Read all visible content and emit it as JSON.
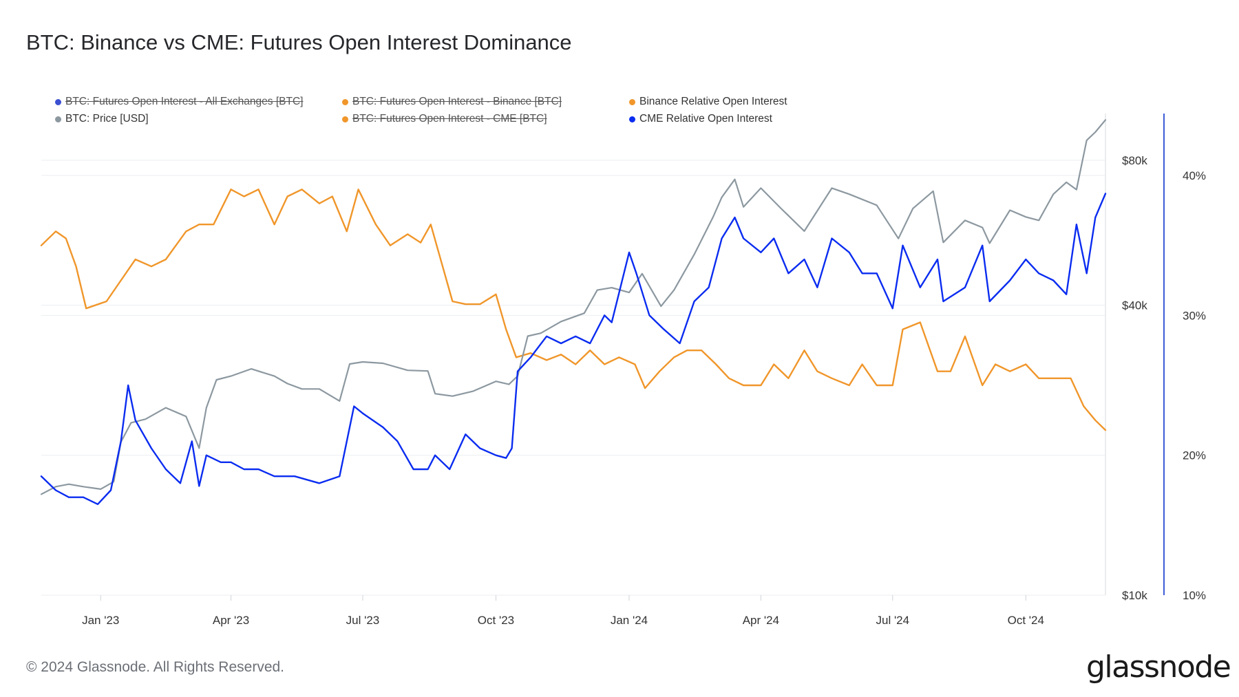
{
  "title": "BTC: Binance vs CME: Futures Open Interest Dominance",
  "footer": "© 2024 Glassnode. All Rights Reserved.",
  "logo": "glassnode",
  "legend": [
    {
      "label": "BTC: Futures Open Interest - All Exchanges [BTC]",
      "color": "#3b4fd1",
      "active": false
    },
    {
      "label": "BTC: Futures Open Interest - Binance [BTC]",
      "color": "#f0962a",
      "active": false
    },
    {
      "label": "Binance Relative Open Interest",
      "color": "#f0962a",
      "active": true
    },
    {
      "label": "BTC: Price [USD]",
      "color": "#8c98a0",
      "active": true
    },
    {
      "label": "BTC: Futures Open Interest - CME [BTC]",
      "color": "#f0962a",
      "active": false
    },
    {
      "label": "CME Relative Open Interest",
      "color": "#0a2cf0",
      "active": true
    }
  ],
  "chart_data": {
    "type": "line",
    "x_ticks": [
      "Jan '23",
      "Apr '23",
      "Jul '23",
      "Oct '23",
      "Jan '24",
      "Apr '24",
      "Jul '24",
      "Oct '24"
    ],
    "y_left_ticks": [
      "$80k",
      "$40k",
      "$10k"
    ],
    "y_right_ticks": [
      "40%",
      "30%",
      "20%",
      "10%"
    ],
    "y_left_scale": "log",
    "y_left_range": [
      10000,
      100000
    ],
    "y_right_range": [
      10,
      40
    ],
    "x_range": [
      "2022-11-21",
      "2024-11-25"
    ],
    "grid": true,
    "legend_position": "top",
    "series": [
      {
        "name": "Binance Relative Open Interest",
        "axis": "right",
        "color": "#f0962a",
        "x": [
          "2022-11-21",
          "2022-12-01",
          "2022-12-08",
          "2022-12-15",
          "2022-12-22",
          "2023-01-05",
          "2023-01-15",
          "2023-01-25",
          "2023-02-05",
          "2023-02-15",
          "2023-03-01",
          "2023-03-10",
          "2023-03-20",
          "2023-04-01",
          "2023-04-10",
          "2023-04-20",
          "2023-05-01",
          "2023-05-10",
          "2023-05-20",
          "2023-06-01",
          "2023-06-10",
          "2023-06-20",
          "2023-06-28",
          "2023-07-10",
          "2023-07-20",
          "2023-08-01",
          "2023-08-10",
          "2023-08-17",
          "2023-09-01",
          "2023-09-10",
          "2023-09-20",
          "2023-10-01",
          "2023-10-08",
          "2023-10-15",
          "2023-10-25",
          "2023-11-05",
          "2023-11-15",
          "2023-11-25",
          "2023-12-05",
          "2023-12-15",
          "2023-12-25",
          "2024-01-05",
          "2024-01-12",
          "2024-01-22",
          "2024-02-01",
          "2024-02-10",
          "2024-02-20",
          "2024-03-01",
          "2024-03-10",
          "2024-03-20",
          "2024-04-01",
          "2024-04-10",
          "2024-04-20",
          "2024-05-01",
          "2024-05-10",
          "2024-05-20",
          "2024-06-01",
          "2024-06-10",
          "2024-06-20",
          "2024-07-01",
          "2024-07-08",
          "2024-07-20",
          "2024-08-01",
          "2024-08-10",
          "2024-08-20",
          "2024-09-01",
          "2024-09-10",
          "2024-09-20",
          "2024-10-01",
          "2024-10-10",
          "2024-10-20",
          "2024-11-01",
          "2024-11-10",
          "2024-11-18",
          "2024-11-25"
        ],
        "values": [
          35,
          36,
          35.5,
          33.5,
          30.5,
          31,
          32.5,
          34,
          33.5,
          34,
          36,
          36.5,
          36.5,
          39,
          38.5,
          39,
          36.5,
          38.5,
          39,
          38,
          38.5,
          36,
          39,
          36.5,
          35,
          35.8,
          35.2,
          36.5,
          31,
          30.8,
          30.8,
          31.5,
          29,
          27,
          27.3,
          26.8,
          27.2,
          26.5,
          27.5,
          26.5,
          27,
          26.5,
          24.8,
          26,
          27,
          27.5,
          27.5,
          26.5,
          25.5,
          25,
          25,
          26.5,
          25.5,
          27.5,
          26,
          25.5,
          25,
          26.5,
          25,
          25,
          29,
          29.5,
          26,
          26,
          28.5,
          25,
          26.5,
          26,
          26.5,
          25.5,
          25.5,
          25.5,
          23.5,
          22.5,
          21.8
        ]
      },
      {
        "name": "BTC: Price [USD]",
        "axis": "left",
        "color": "#8c98a0",
        "x": [
          "2022-11-21",
          "2022-12-01",
          "2022-12-10",
          "2022-12-20",
          "2023-01-01",
          "2023-01-10",
          "2023-01-15",
          "2023-01-22",
          "2023-02-01",
          "2023-02-15",
          "2023-03-01",
          "2023-03-10",
          "2023-03-15",
          "2023-03-22",
          "2023-04-01",
          "2023-04-15",
          "2023-05-01",
          "2023-05-10",
          "2023-05-20",
          "2023-06-01",
          "2023-06-15",
          "2023-06-22",
          "2023-07-01",
          "2023-07-15",
          "2023-08-01",
          "2023-08-15",
          "2023-08-20",
          "2023-09-01",
          "2023-09-15",
          "2023-10-01",
          "2023-10-10",
          "2023-10-16",
          "2023-10-23",
          "2023-11-01",
          "2023-11-15",
          "2023-12-01",
          "2023-12-10",
          "2023-12-20",
          "2024-01-01",
          "2024-01-10",
          "2024-01-23",
          "2024-02-01",
          "2024-02-15",
          "2024-02-28",
          "2024-03-05",
          "2024-03-14",
          "2024-03-20",
          "2024-04-01",
          "2024-04-15",
          "2024-05-01",
          "2024-05-20",
          "2024-06-01",
          "2024-06-20",
          "2024-07-05",
          "2024-07-15",
          "2024-07-29",
          "2024-08-05",
          "2024-08-20",
          "2024-09-01",
          "2024-09-06",
          "2024-09-20",
          "2024-10-01",
          "2024-10-10",
          "2024-10-20",
          "2024-10-29",
          "2024-11-05",
          "2024-11-12",
          "2024-11-18",
          "2024-11-25"
        ],
        "values": [
          16200,
          16800,
          17000,
          16800,
          16600,
          17200,
          20800,
          22800,
          23200,
          24500,
          23500,
          20200,
          24500,
          28000,
          28500,
          29500,
          28500,
          27500,
          26800,
          26800,
          25300,
          30200,
          30500,
          30300,
          29300,
          29200,
          26200,
          25900,
          26500,
          27800,
          27400,
          28500,
          34500,
          35000,
          37000,
          38500,
          43000,
          43500,
          42500,
          46500,
          39800,
          43000,
          51000,
          61000,
          67000,
          73000,
          64000,
          70000,
          63500,
          57000,
          70000,
          68000,
          64500,
          55000,
          63500,
          69000,
          54000,
          60000,
          58000,
          53800,
          63000,
          61000,
          60000,
          68000,
          72000,
          69500,
          88000,
          91500,
          97000
        ]
      },
      {
        "name": "CME Relative Open Interest",
        "axis": "right",
        "color": "#0a2cf0",
        "x": [
          "2022-11-21",
          "2022-12-01",
          "2022-12-10",
          "2022-12-20",
          "2022-12-30",
          "2023-01-08",
          "2023-01-15",
          "2023-01-20",
          "2023-01-25",
          "2023-02-05",
          "2023-02-15",
          "2023-02-25",
          "2023-03-05",
          "2023-03-10",
          "2023-03-15",
          "2023-03-25",
          "2023-04-01",
          "2023-04-10",
          "2023-04-20",
          "2023-05-01",
          "2023-05-15",
          "2023-06-01",
          "2023-06-15",
          "2023-06-25",
          "2023-07-01",
          "2023-07-15",
          "2023-07-25",
          "2023-08-05",
          "2023-08-15",
          "2023-08-20",
          "2023-08-30",
          "2023-09-10",
          "2023-09-20",
          "2023-10-01",
          "2023-10-08",
          "2023-10-12",
          "2023-10-16",
          "2023-10-25",
          "2023-11-05",
          "2023-11-15",
          "2023-11-25",
          "2023-12-05",
          "2023-12-15",
          "2023-12-20",
          "2024-01-01",
          "2024-01-06",
          "2024-01-15",
          "2024-01-25",
          "2024-02-05",
          "2024-02-15",
          "2024-02-25",
          "2024-03-05",
          "2024-03-14",
          "2024-03-20",
          "2024-04-01",
          "2024-04-10",
          "2024-04-20",
          "2024-05-01",
          "2024-05-10",
          "2024-05-20",
          "2024-06-01",
          "2024-06-10",
          "2024-06-20",
          "2024-07-01",
          "2024-07-08",
          "2024-07-20",
          "2024-08-01",
          "2024-08-05",
          "2024-08-20",
          "2024-09-01",
          "2024-09-06",
          "2024-09-20",
          "2024-10-01",
          "2024-10-10",
          "2024-10-20",
          "2024-10-29",
          "2024-11-05",
          "2024-11-12",
          "2024-11-18",
          "2024-11-25"
        ],
        "values": [
          18.5,
          17.5,
          17,
          17,
          16.5,
          17.5,
          21,
          25,
          22.5,
          20.5,
          19,
          18,
          21,
          17.8,
          20,
          19.5,
          19.5,
          19,
          19,
          18.5,
          18.5,
          18,
          18.5,
          23.5,
          23,
          22,
          21,
          19,
          19,
          20,
          19,
          21.5,
          20.5,
          20,
          19.8,
          20.5,
          26,
          27,
          28.5,
          28,
          28.5,
          28,
          30,
          29.5,
          34.5,
          33,
          30,
          29,
          28,
          31,
          32,
          35.5,
          37,
          35.5,
          34.5,
          35.5,
          33,
          34,
          32,
          35.5,
          34.5,
          33,
          33,
          30.5,
          35,
          32,
          34,
          31,
          32,
          35,
          31,
          32.5,
          34,
          33,
          32.5,
          31.5,
          36.5,
          33,
          37,
          38.7
        ]
      }
    ]
  }
}
